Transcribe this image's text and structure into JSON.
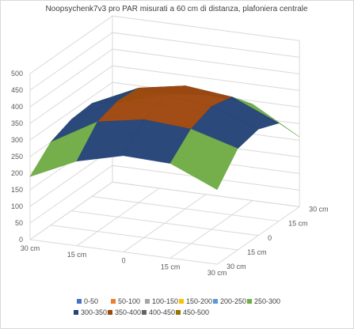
{
  "chart_data": {
    "type": "surface",
    "title": "Noopsychenk7v3 pro PAR misurati a 60 cm di distanza, plafoniera centrale",
    "x_categories": [
      "30 cm",
      "15 cm",
      "0",
      "15 cm",
      "30 cm"
    ],
    "y_categories": [
      "30 cm",
      "15 cm",
      "0",
      "15 cm",
      "30 cm"
    ],
    "z_ticks": [
      "0",
      "50",
      "100",
      "150",
      "200",
      "250",
      "300",
      "350",
      "400",
      "450",
      "500"
    ],
    "zlim": [
      0,
      500
    ],
    "grid": true,
    "legend_position": "bottom",
    "values": [
      [
        190,
        255,
        290,
        285,
        225
      ],
      [
        250,
        330,
        355,
        345,
        305
      ],
      [
        275,
        350,
        385,
        370,
        320
      ],
      [
        280,
        345,
        370,
        355,
        295
      ],
      [
        235,
        285,
        300,
        290,
        210
      ]
    ],
    "bands": [
      {
        "label": "0-50",
        "color": "#4472C4"
      },
      {
        "label": "50-100",
        "color": "#ED7D31"
      },
      {
        "label": "100-150",
        "color": "#A5A5A5"
      },
      {
        "label": "150-200",
        "color": "#FFC000"
      },
      {
        "label": "200-250",
        "color": "#5B9BD5"
      },
      {
        "label": "250-300",
        "color": "#70AD47"
      },
      {
        "label": "300-350",
        "color": "#264478"
      },
      {
        "label": "350-400",
        "color": "#9E480E"
      },
      {
        "label": "400-450",
        "color": "#636363"
      },
      {
        "label": "450-500",
        "color": "#997300"
      }
    ]
  }
}
